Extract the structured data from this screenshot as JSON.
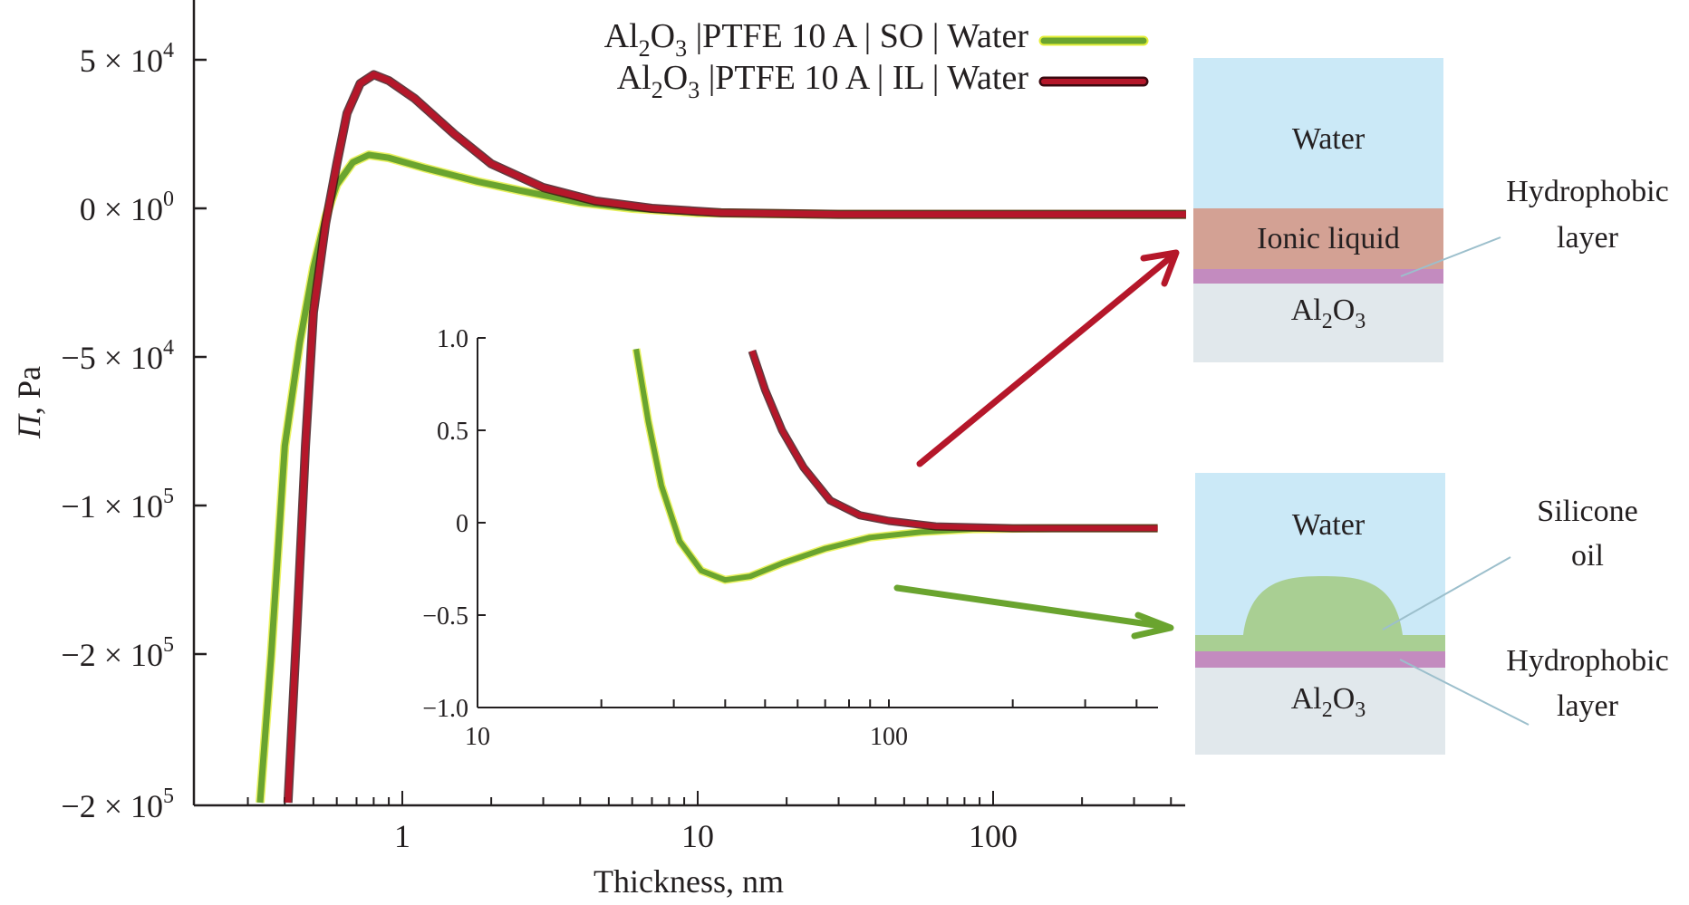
{
  "chart_data": [
    {
      "id": "main",
      "type": "line",
      "title": "",
      "xlabel": "Thickness, nm",
      "ylabel_italic": "Π",
      "ylabel_rest": ", Pa",
      "xscale": "log",
      "xlim": [
        0.2,
        450
      ],
      "ylim": [
        -250000,
        75000
      ],
      "grid": false,
      "x_tick_labels": [
        {
          "value": 1,
          "label": "1"
        },
        {
          "value": 10,
          "label": "10"
        },
        {
          "value": 100,
          "label": "100"
        }
      ],
      "y_ticks": [
        {
          "value": 50000,
          "mant": "5 × 10",
          "exp": "4"
        },
        {
          "value": 0,
          "mant": "0 × 10",
          "exp": "0"
        },
        {
          "value": -50000,
          "mant": "−5 × 10",
          "exp": "4"
        },
        {
          "value": -100000,
          "mant": "−1 × 10",
          "exp": "5"
        },
        {
          "value": -150000,
          "mant": "−2 × 10",
          "exp": "5"
        },
        {
          "value": -200000,
          "mant": "−2 × 10",
          "exp": "5"
        }
      ],
      "legend_position": "top-center",
      "series": [
        {
          "name_parts": [
            "Al",
            "2",
            "O",
            "3",
            " |PTFE 10 A | SO | Water"
          ],
          "color": "#6aa42f",
          "edge": "#e5ef3a",
          "points": [
            [
              0.33,
              -200000
            ],
            [
              0.36,
              -150000
            ],
            [
              0.4,
              -80000
            ],
            [
              0.45,
              -45000
            ],
            [
              0.5,
              -20000
            ],
            [
              0.55,
              -3000
            ],
            [
              0.6,
              8000
            ],
            [
              0.68,
              15500
            ],
            [
              0.77,
              18000
            ],
            [
              0.9,
              17000
            ],
            [
              1.2,
              13500
            ],
            [
              1.8,
              9000
            ],
            [
              2.5,
              6000
            ],
            [
              4,
              2000
            ],
            [
              6,
              0
            ],
            [
              10,
              -1500
            ],
            [
              30,
              -2000
            ],
            [
              450,
              -2000
            ]
          ]
        },
        {
          "name_parts": [
            "Al",
            "2",
            "O",
            "3",
            " |PTFE 10 A | IL | Water"
          ],
          "color": "#b5172a",
          "edge": "#3a0a10",
          "points": [
            [
              0.41,
              -200000
            ],
            [
              0.44,
              -140000
            ],
            [
              0.47,
              -80000
            ],
            [
              0.5,
              -35000
            ],
            [
              0.55,
              -5000
            ],
            [
              0.6,
              15000
            ],
            [
              0.65,
              32000
            ],
            [
              0.72,
              42000
            ],
            [
              0.8,
              45000
            ],
            [
              0.9,
              43000
            ],
            [
              1.1,
              37000
            ],
            [
              1.5,
              25000
            ],
            [
              2,
              15000
            ],
            [
              3,
              7000
            ],
            [
              4.5,
              2500
            ],
            [
              7,
              0
            ],
            [
              12,
              -1500
            ],
            [
              30,
              -2000
            ],
            [
              450,
              -2000
            ]
          ]
        }
      ]
    },
    {
      "id": "inset",
      "type": "line",
      "xscale": "log",
      "xlim": [
        10,
        450
      ],
      "ylim": [
        -1.0,
        1.0
      ],
      "grid": false,
      "x_tick_labels": [
        {
          "value": 10,
          "label": "10"
        },
        {
          "value": 100,
          "label": "100"
        }
      ],
      "y_tick_labels": [
        {
          "value": 1.0,
          "label": "1.0"
        },
        {
          "value": 0.5,
          "label": "0.5"
        },
        {
          "value": 0,
          "label": "0"
        },
        {
          "value": -0.5,
          "label": "−0.5"
        },
        {
          "value": -1.0,
          "label": "−1.0"
        }
      ],
      "series": [
        {
          "name": "SO",
          "color": "#6aa42f",
          "points": [
            [
              24.3,
              0.94
            ],
            [
              26,
              0.55
            ],
            [
              28,
              0.2
            ],
            [
              31,
              -0.1
            ],
            [
              35,
              -0.26
            ],
            [
              40,
              -0.31
            ],
            [
              46,
              -0.29
            ],
            [
              55,
              -0.22
            ],
            [
              70,
              -0.14
            ],
            [
              90,
              -0.08
            ],
            [
              120,
              -0.05
            ],
            [
              160,
              -0.035
            ],
            [
              250,
              -0.03
            ],
            [
              450,
              -0.03
            ]
          ]
        },
        {
          "name": "IL",
          "color": "#b5172a",
          "points": [
            [
              46.5,
              0.93
            ],
            [
              50,
              0.72
            ],
            [
              55,
              0.5
            ],
            [
              62,
              0.3
            ],
            [
              72,
              0.12
            ],
            [
              85,
              0.04
            ],
            [
              100,
              0.01
            ],
            [
              130,
              -0.02
            ],
            [
              200,
              -0.03
            ],
            [
              450,
              -0.03
            ]
          ]
        }
      ]
    }
  ],
  "diagrams": {
    "ionic": {
      "water_label": "Water",
      "liquid_label": "Ionic liquid",
      "substrate_parts": [
        "Al",
        "2",
        "O",
        "3"
      ],
      "callout_line1": "Hydrophobic",
      "callout_line2": "layer"
    },
    "silicone": {
      "water_label": "Water",
      "substrate_parts": [
        "Al",
        "2",
        "O",
        "3"
      ],
      "oil_callout_line1": "Silicone",
      "oil_callout_line2": "oil",
      "layer_callout_line1": "Hydrophobic",
      "layer_callout_line2": "layer"
    },
    "colors": {
      "water": "#cbe9f7",
      "ionic_liquid": "#d3a194",
      "hydrophobic": "#c38bbf",
      "substrate": "#e1e8ec",
      "silicone_oil": "#a9cf93",
      "callout": "#9cbfcc"
    }
  }
}
